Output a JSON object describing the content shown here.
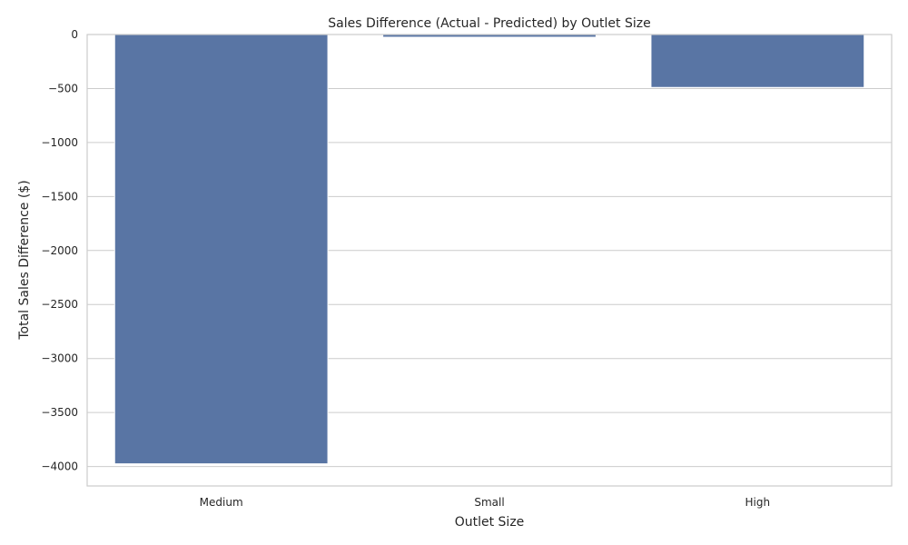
{
  "chart_data": {
    "type": "bar",
    "title": "Sales Difference (Actual - Predicted) by Outlet Size",
    "xlabel": "Outlet Size",
    "ylabel": "Total Sales Difference ($)",
    "categories": [
      "Medium",
      "Small",
      "High"
    ],
    "values": [
      -3975,
      -25,
      -490
    ],
    "ylim": [
      -4180,
      0
    ],
    "yticks": [
      0,
      -500,
      -1000,
      -1500,
      -2000,
      -2500,
      -3000,
      -3500,
      -4000
    ],
    "ytick_labels": [
      "0",
      "−500",
      "−1000",
      "−1500",
      "−2000",
      "−2500",
      "−3000",
      "−3500",
      "−4000"
    ],
    "grid": "horizontal",
    "bar_color": "#5975a4",
    "grid_color": "#cccccc",
    "text_color": "#262626"
  }
}
